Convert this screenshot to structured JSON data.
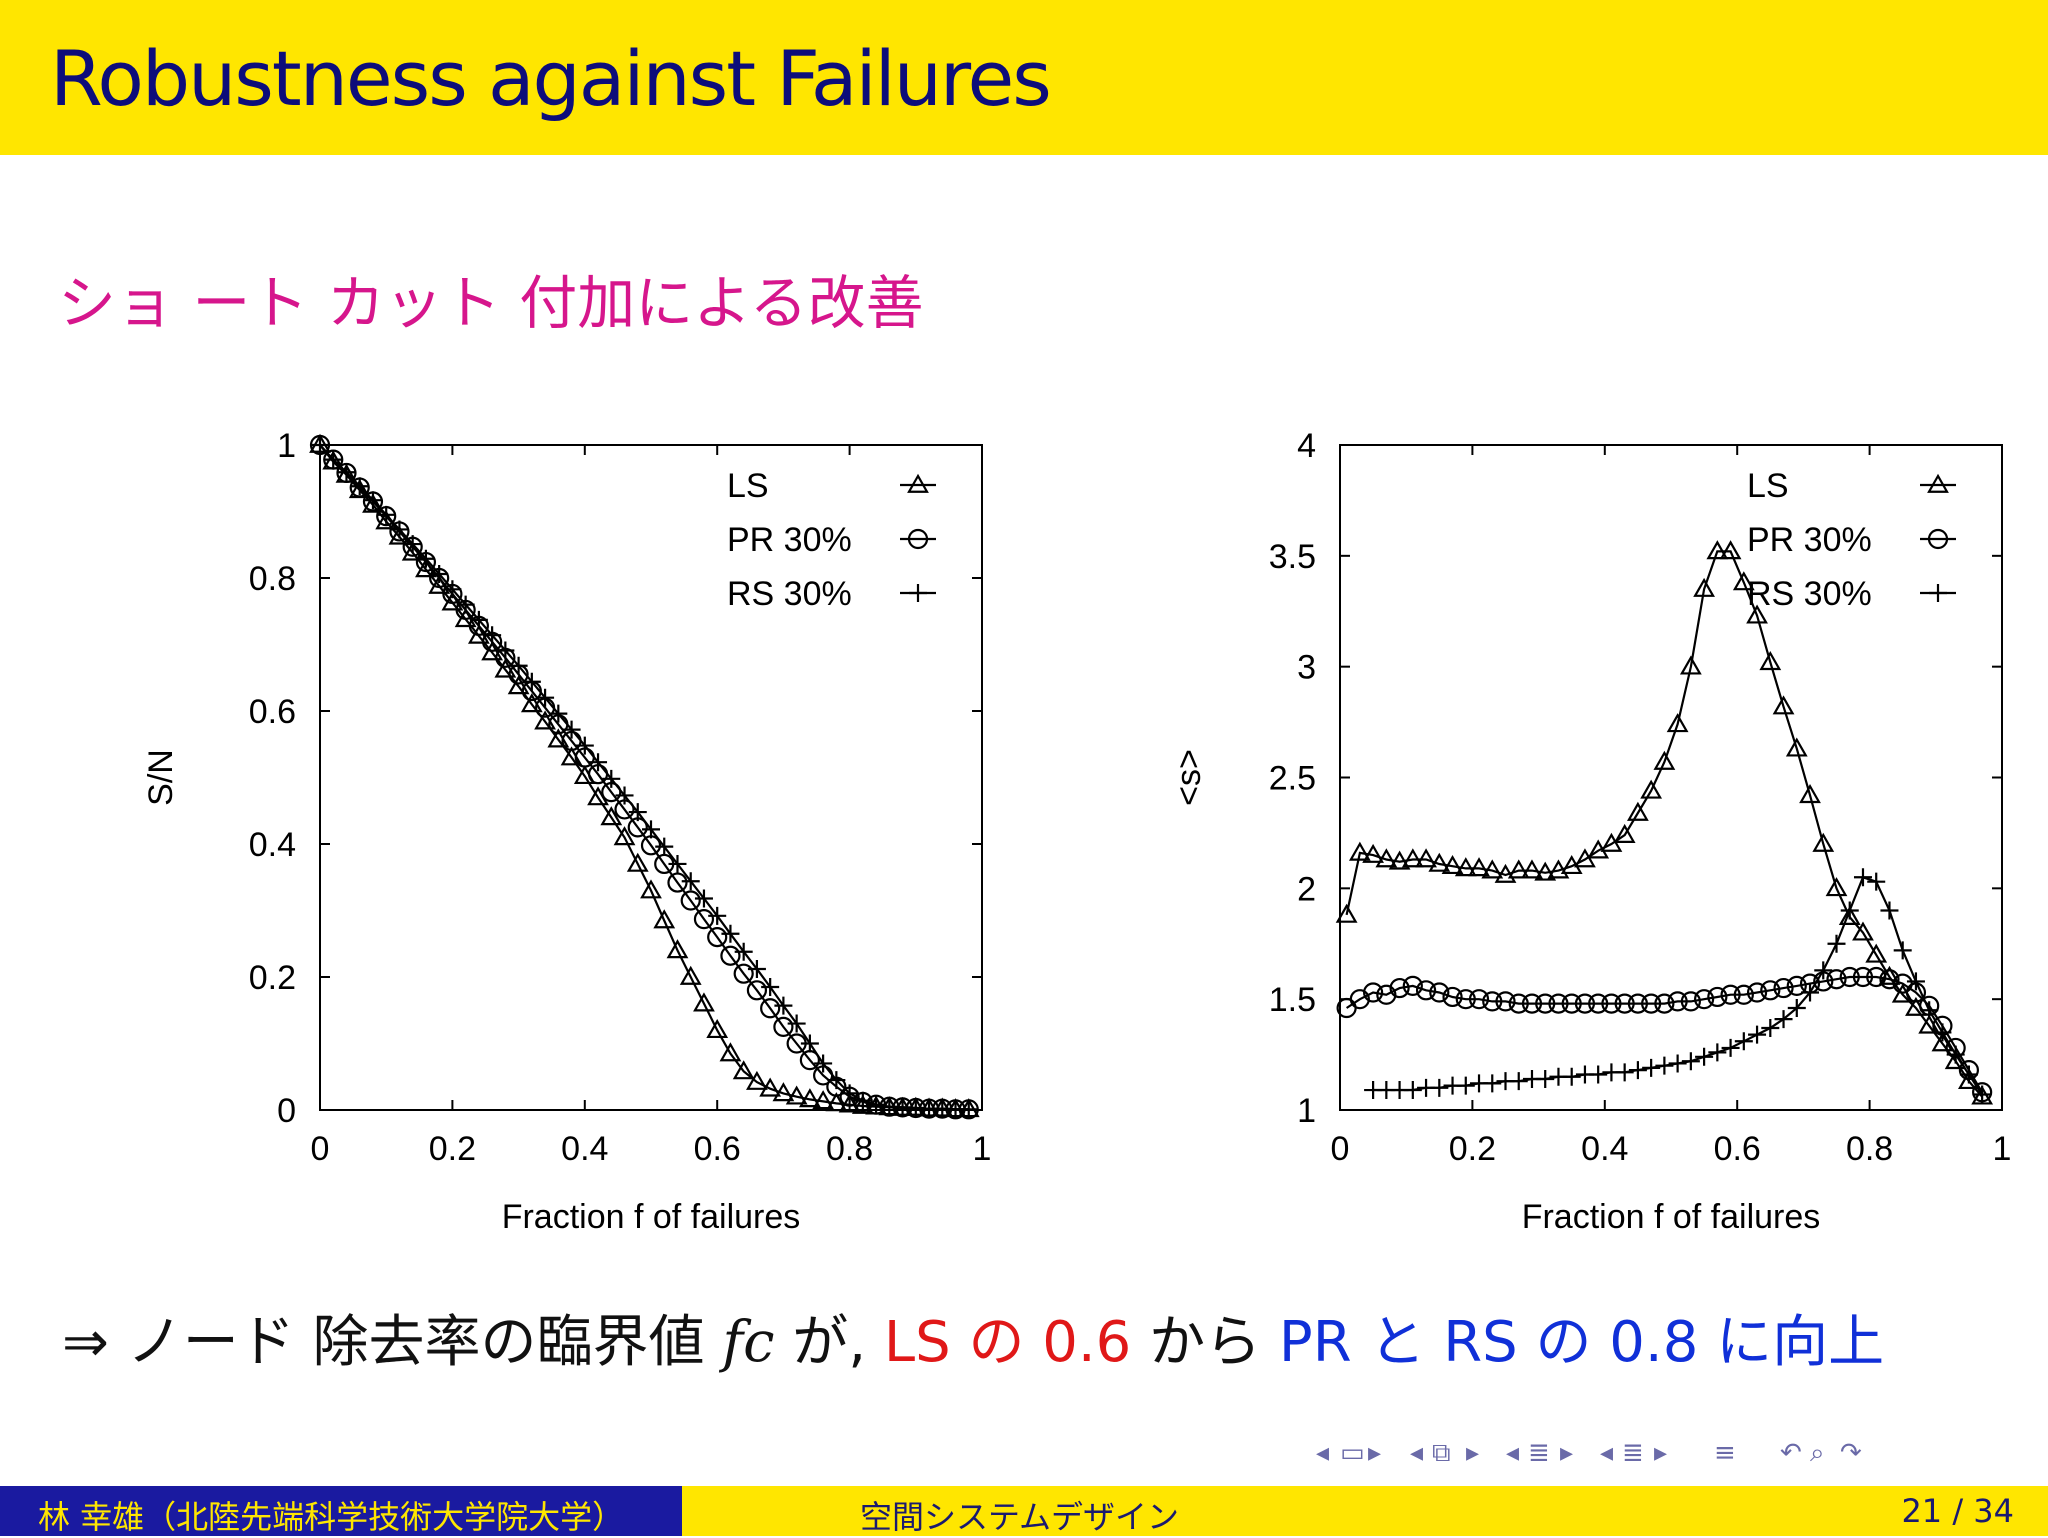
{
  "slide": {
    "title": "Robustness against Failures",
    "subtitle": "ショ ート カット 付加による改善",
    "conclusion": {
      "arrow": "⇒",
      "part1": "ノード 除去率の臨界値",
      "fc": "fc",
      "part2": "が,",
      "red": "LS の 0.6",
      "part3": "から",
      "blue": "PR と RS の 0.8 に向上"
    }
  },
  "footer": {
    "author": "林 幸雄（北陸先端科学技術大学院大学）",
    "course": "空間システムデザイン",
    "page": "21 / 34"
  },
  "nav_icons": [
    "nav-prev-frame-icon",
    "nav-frame-icon",
    "nav-next-frame-icon",
    "nav-prev-slide-icon",
    "nav-slide-icon",
    "nav-next-slide-icon",
    "nav-prev-section-icon",
    "nav-section-icon",
    "nav-next-section-icon",
    "nav-prev-subsection-icon",
    "nav-subsection-icon",
    "nav-next-subsection-icon",
    "nav-toc-icon",
    "nav-back-icon",
    "nav-search-icon",
    "nav-forward-icon"
  ],
  "colors": {
    "title_bar": "#FFE600",
    "title_text": "#0d0d7a",
    "subtitle_text": "#d6168c",
    "red": "#e01818",
    "blue": "#1030d8",
    "footer_left": "#1a1aa0"
  },
  "chart_data": [
    {
      "type": "line",
      "xlabel": "Fraction  f of failures",
      "ylabel": "S/N",
      "xlim": [
        0,
        1
      ],
      "ylim": [
        0,
        1
      ],
      "xticks": [
        "0",
        "0.2",
        "0.4",
        "0.6",
        "0.8",
        "1"
      ],
      "yticks": [
        "0",
        "0.2",
        "0.4",
        "0.6",
        "0.8",
        "1"
      ],
      "legend_position": "top-right",
      "series": [
        {
          "name": "LS",
          "marker": "triangle",
          "x": [
            0,
            0.02,
            0.04,
            0.06,
            0.08,
            0.1,
            0.12,
            0.14,
            0.16,
            0.18,
            0.2,
            0.22,
            0.24,
            0.26,
            0.28,
            0.3,
            0.32,
            0.34,
            0.36,
            0.38,
            0.4,
            0.42,
            0.44,
            0.46,
            0.48,
            0.5,
            0.52,
            0.54,
            0.56,
            0.58,
            0.6,
            0.62,
            0.64,
            0.66,
            0.68,
            0.7,
            0.72,
            0.74,
            0.76,
            0.78,
            0.8,
            0.82,
            0.84,
            0.86,
            0.88,
            0.9,
            0.92,
            0.94,
            0.96,
            0.98
          ],
          "y": [
            1.0,
            0.975,
            0.955,
            0.932,
            0.91,
            0.885,
            0.862,
            0.838,
            0.813,
            0.788,
            0.763,
            0.738,
            0.713,
            0.688,
            0.662,
            0.637,
            0.61,
            0.584,
            0.557,
            0.53,
            0.502,
            0.47,
            0.44,
            0.41,
            0.37,
            0.33,
            0.285,
            0.24,
            0.2,
            0.16,
            0.12,
            0.085,
            0.058,
            0.042,
            0.032,
            0.025,
            0.02,
            0.016,
            0.013,
            0.01,
            0.008,
            0.006,
            0.005,
            0.004,
            0.003,
            0.003,
            0.002,
            0.002,
            0.001,
            0.001
          ]
        },
        {
          "name": "PR 30%",
          "marker": "circle",
          "x": [
            0,
            0.02,
            0.04,
            0.06,
            0.08,
            0.1,
            0.12,
            0.14,
            0.16,
            0.18,
            0.2,
            0.22,
            0.24,
            0.26,
            0.28,
            0.3,
            0.32,
            0.34,
            0.36,
            0.38,
            0.4,
            0.42,
            0.44,
            0.46,
            0.48,
            0.5,
            0.52,
            0.54,
            0.56,
            0.58,
            0.6,
            0.62,
            0.64,
            0.66,
            0.68,
            0.7,
            0.72,
            0.74,
            0.76,
            0.78,
            0.8,
            0.82,
            0.84,
            0.86,
            0.88,
            0.9,
            0.92,
            0.94,
            0.96,
            0.98
          ],
          "y": [
            1.0,
            0.978,
            0.958,
            0.936,
            0.915,
            0.893,
            0.87,
            0.847,
            0.824,
            0.8,
            0.776,
            0.752,
            0.728,
            0.704,
            0.68,
            0.655,
            0.63,
            0.605,
            0.58,
            0.555,
            0.53,
            0.505,
            0.478,
            0.452,
            0.425,
            0.398,
            0.37,
            0.342,
            0.315,
            0.287,
            0.26,
            0.232,
            0.205,
            0.18,
            0.153,
            0.125,
            0.1,
            0.075,
            0.052,
            0.035,
            0.02,
            0.012,
            0.008,
            0.005,
            0.004,
            0.003,
            0.002,
            0.002,
            0.001,
            0.001
          ]
        },
        {
          "name": "RS 30%",
          "marker": "plus",
          "x": [
            0,
            0.02,
            0.04,
            0.06,
            0.08,
            0.1,
            0.12,
            0.14,
            0.16,
            0.18,
            0.2,
            0.22,
            0.24,
            0.26,
            0.28,
            0.3,
            0.32,
            0.34,
            0.36,
            0.38,
            0.4,
            0.42,
            0.44,
            0.46,
            0.48,
            0.5,
            0.52,
            0.54,
            0.56,
            0.58,
            0.6,
            0.62,
            0.64,
            0.66,
            0.68,
            0.7,
            0.72,
            0.74,
            0.76,
            0.78,
            0.8,
            0.82,
            0.84,
            0.86,
            0.88,
            0.9,
            0.92,
            0.94,
            0.96,
            0.98
          ],
          "y": [
            1.0,
            0.978,
            0.959,
            0.938,
            0.917,
            0.895,
            0.873,
            0.851,
            0.829,
            0.806,
            0.783,
            0.76,
            0.737,
            0.714,
            0.691,
            0.668,
            0.644,
            0.62,
            0.596,
            0.572,
            0.548,
            0.523,
            0.498,
            0.473,
            0.448,
            0.422,
            0.396,
            0.37,
            0.344,
            0.318,
            0.292,
            0.265,
            0.238,
            0.212,
            0.185,
            0.157,
            0.13,
            0.1,
            0.07,
            0.045,
            0.025,
            0.014,
            0.008,
            0.005,
            0.004,
            0.003,
            0.002,
            0.002,
            0.001,
            0.001
          ]
        }
      ]
    },
    {
      "type": "line",
      "xlabel": "Fraction  f of failures",
      "ylabel": "<s>",
      "xlim": [
        0,
        1
      ],
      "ylim": [
        1,
        4
      ],
      "xticks": [
        "0",
        "0.2",
        "0.4",
        "0.6",
        "0.8",
        "1"
      ],
      "yticks": [
        "1",
        "1.5",
        "2",
        "2.5",
        "3",
        "3.5",
        "4"
      ],
      "legend_position": "top-right",
      "series": [
        {
          "name": "LS",
          "marker": "triangle",
          "x": [
            0.01,
            0.03,
            0.05,
            0.07,
            0.09,
            0.11,
            0.13,
            0.15,
            0.17,
            0.19,
            0.21,
            0.23,
            0.25,
            0.27,
            0.29,
            0.31,
            0.33,
            0.35,
            0.37,
            0.39,
            0.41,
            0.43,
            0.45,
            0.47,
            0.49,
            0.51,
            0.53,
            0.55,
            0.57,
            0.59,
            0.61,
            0.63,
            0.65,
            0.67,
            0.69,
            0.71,
            0.73,
            0.75,
            0.77,
            0.79,
            0.81,
            0.83,
            0.85,
            0.87,
            0.89,
            0.91,
            0.93,
            0.95,
            0.97
          ],
          "y": [
            1.88,
            2.16,
            2.15,
            2.13,
            2.12,
            2.13,
            2.13,
            2.11,
            2.1,
            2.09,
            2.09,
            2.08,
            2.06,
            2.08,
            2.08,
            2.07,
            2.08,
            2.1,
            2.13,
            2.17,
            2.2,
            2.24,
            2.34,
            2.44,
            2.57,
            2.74,
            3.0,
            3.35,
            3.52,
            3.52,
            3.38,
            3.23,
            3.02,
            2.82,
            2.63,
            2.42,
            2.2,
            2.0,
            1.87,
            1.8,
            1.7,
            1.6,
            1.52,
            1.46,
            1.38,
            1.3,
            1.22,
            1.13,
            1.06
          ]
        },
        {
          "name": "PR 30%",
          "marker": "circle",
          "x": [
            0.01,
            0.03,
            0.05,
            0.07,
            0.09,
            0.11,
            0.13,
            0.15,
            0.17,
            0.19,
            0.21,
            0.23,
            0.25,
            0.27,
            0.29,
            0.31,
            0.33,
            0.35,
            0.37,
            0.39,
            0.41,
            0.43,
            0.45,
            0.47,
            0.49,
            0.51,
            0.53,
            0.55,
            0.57,
            0.59,
            0.61,
            0.63,
            0.65,
            0.67,
            0.69,
            0.71,
            0.73,
            0.75,
            0.77,
            0.79,
            0.81,
            0.83,
            0.85,
            0.87,
            0.89,
            0.91,
            0.93,
            0.95,
            0.97
          ],
          "y": [
            1.46,
            1.5,
            1.53,
            1.52,
            1.55,
            1.56,
            1.54,
            1.53,
            1.51,
            1.5,
            1.5,
            1.49,
            1.49,
            1.48,
            1.48,
            1.48,
            1.48,
            1.48,
            1.48,
            1.48,
            1.48,
            1.48,
            1.48,
            1.48,
            1.48,
            1.49,
            1.49,
            1.5,
            1.51,
            1.52,
            1.52,
            1.53,
            1.54,
            1.55,
            1.56,
            1.57,
            1.58,
            1.59,
            1.6,
            1.6,
            1.6,
            1.59,
            1.57,
            1.53,
            1.47,
            1.38,
            1.28,
            1.18,
            1.08
          ]
        },
        {
          "name": "RS 30%",
          "marker": "plus",
          "x": [
            0.05,
            0.07,
            0.09,
            0.11,
            0.13,
            0.15,
            0.17,
            0.19,
            0.21,
            0.23,
            0.25,
            0.27,
            0.29,
            0.31,
            0.33,
            0.35,
            0.37,
            0.39,
            0.41,
            0.43,
            0.45,
            0.47,
            0.49,
            0.51,
            0.53,
            0.55,
            0.57,
            0.59,
            0.61,
            0.63,
            0.65,
            0.67,
            0.69,
            0.71,
            0.73,
            0.75,
            0.77,
            0.79,
            0.81,
            0.83,
            0.85,
            0.87,
            0.89,
            0.91,
            0.93,
            0.95,
            0.97
          ],
          "y": [
            1.09,
            1.09,
            1.09,
            1.09,
            1.1,
            1.1,
            1.11,
            1.11,
            1.12,
            1.12,
            1.13,
            1.13,
            1.14,
            1.14,
            1.15,
            1.15,
            1.16,
            1.16,
            1.17,
            1.17,
            1.18,
            1.19,
            1.2,
            1.21,
            1.22,
            1.24,
            1.26,
            1.28,
            1.31,
            1.34,
            1.37,
            1.41,
            1.46,
            1.53,
            1.63,
            1.75,
            1.9,
            2.05,
            2.03,
            1.9,
            1.72,
            1.58,
            1.45,
            1.35,
            1.25,
            1.16,
            1.07
          ]
        }
      ]
    }
  ]
}
